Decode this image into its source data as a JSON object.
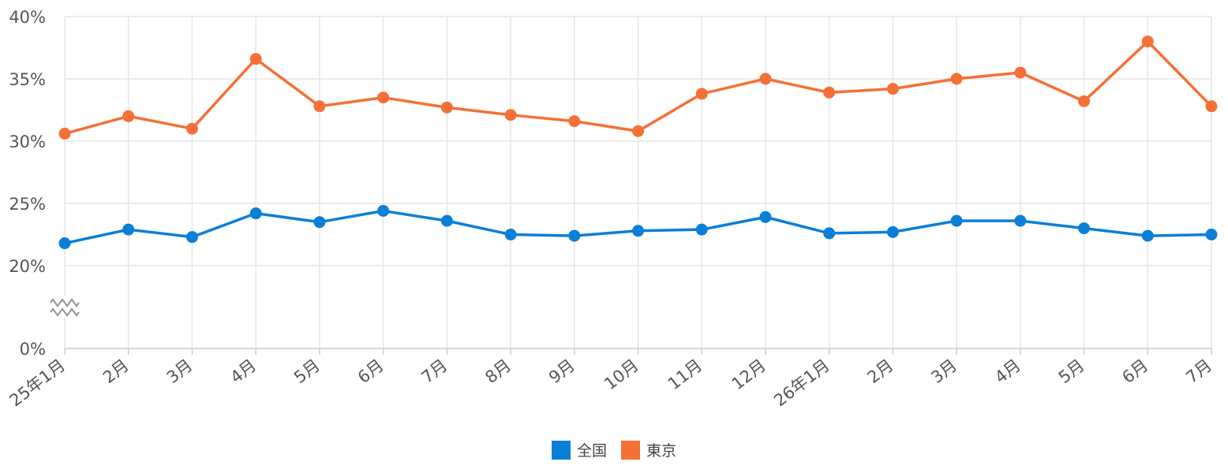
{
  "chart_data": {
    "type": "line",
    "categories": [
      "25年1月",
      "2月",
      "3月",
      "4月",
      "5月",
      "6月",
      "7月",
      "8月",
      "9月",
      "10月",
      "11月",
      "12月",
      "26年1月",
      "2月",
      "3月",
      "4月",
      "5月",
      "6月",
      "7月"
    ],
    "series": [
      {
        "name": "全国",
        "color": "#0a7fd8",
        "values": [
          21.8,
          22.9,
          22.3,
          24.2,
          23.5,
          24.4,
          23.6,
          22.5,
          22.4,
          22.8,
          22.9,
          23.9,
          22.6,
          22.7,
          23.6,
          23.6,
          23.0,
          22.4,
          22.5
        ]
      },
      {
        "name": "東京",
        "color": "#f57036",
        "values": [
          30.6,
          32.0,
          31.0,
          36.6,
          32.8,
          33.5,
          32.7,
          32.1,
          31.6,
          30.8,
          33.8,
          35.0,
          33.9,
          34.2,
          35.0,
          35.5,
          33.2,
          38.0,
          32.8
        ]
      }
    ],
    "yticks": [
      "40%",
      "35%",
      "30%",
      "25%",
      "20%",
      "0%"
    ],
    "axis_break": true,
    "legend_position": "bottom-center",
    "grid": true
  }
}
